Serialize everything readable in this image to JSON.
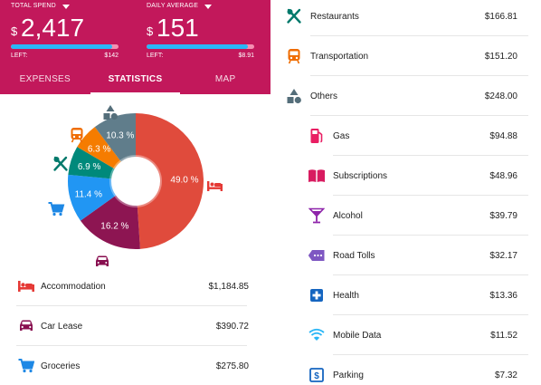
{
  "header": {
    "total_spend": {
      "label": "TOTAL SPEND",
      "currency": "$",
      "value": "2,417",
      "left_label": "LEFT:",
      "left_value": "$142",
      "used_fraction": 0.94
    },
    "daily_average": {
      "label": "DAILY AVERAGE",
      "currency": "$",
      "value": "151",
      "left_label": "LEFT:",
      "left_value": "$8.91",
      "used_fraction": 0.94
    }
  },
  "tabs": [
    {
      "label": "EXPENSES",
      "active": false
    },
    {
      "label": "STATISTICS",
      "active": true
    },
    {
      "label": "MAP",
      "active": false
    }
  ],
  "chart_data": {
    "type": "pie",
    "slices": [
      {
        "name": "Accommodation",
        "value": 49.0,
        "label": "49.0 %",
        "color": "#e04b3c"
      },
      {
        "name": "Car Lease",
        "value": 16.2,
        "label": "16.2 %",
        "color": "#8d1552"
      },
      {
        "name": "Groceries",
        "value": 11.4,
        "label": "11.4 %",
        "color": "#2196f3"
      },
      {
        "name": "Restaurants",
        "value": 6.9,
        "label": "6.9 %",
        "color": "#00897b"
      },
      {
        "name": "Transportation",
        "value": 6.3,
        "label": "6.3 %",
        "color": "#f57c00"
      },
      {
        "name": "Others",
        "value": 10.3,
        "label": "10.3 %",
        "color": "#607d8b"
      }
    ]
  },
  "icon_colors": {
    "accommodation": "#e53935",
    "car": "#880e4f",
    "groceries": "#1e88e5",
    "restaurants": "#00796b",
    "transportation": "#ef6c00",
    "others": "#546e7a",
    "gas": "#e91e63",
    "subscriptions": "#d81b60",
    "alcohol": "#8e24aa",
    "road_tolls": "#7e57c2",
    "health": "#1565c0",
    "mobile_data": "#29b6f6",
    "parking": "#1565c0"
  },
  "left_list": [
    {
      "name": "Accommodation",
      "value": "$1,184.85",
      "icon": "bed-icon"
    },
    {
      "name": "Car Lease",
      "value": "$390.72",
      "icon": "car-icon"
    },
    {
      "name": "Groceries",
      "value": "$275.80",
      "icon": "cart-icon"
    }
  ],
  "right_list": [
    {
      "name": "Restaurants",
      "value": "$166.81",
      "icon": "utensils-icon",
      "level": "top"
    },
    {
      "name": "Transportation",
      "value": "$151.20",
      "icon": "train-icon",
      "level": "top"
    },
    {
      "name": "Others",
      "value": "$248.00",
      "icon": "shapes-icon",
      "level": "top"
    },
    {
      "name": "Gas",
      "value": "$94.88",
      "icon": "gas-pump-icon",
      "level": "sub"
    },
    {
      "name": "Subscriptions",
      "value": "$48.96",
      "icon": "book-icon",
      "level": "sub"
    },
    {
      "name": "Alcohol",
      "value": "$39.79",
      "icon": "cocktail-icon",
      "level": "sub"
    },
    {
      "name": "Road Tolls",
      "value": "$32.17",
      "icon": "toll-tag-icon",
      "level": "sub"
    },
    {
      "name": "Health",
      "value": "$13.36",
      "icon": "health-cross-icon",
      "level": "sub"
    },
    {
      "name": "Mobile Data",
      "value": "$11.52",
      "icon": "wifi-icon",
      "level": "sub"
    },
    {
      "name": "Parking",
      "value": "$7.32",
      "icon": "parking-icon",
      "level": "sub"
    }
  ]
}
